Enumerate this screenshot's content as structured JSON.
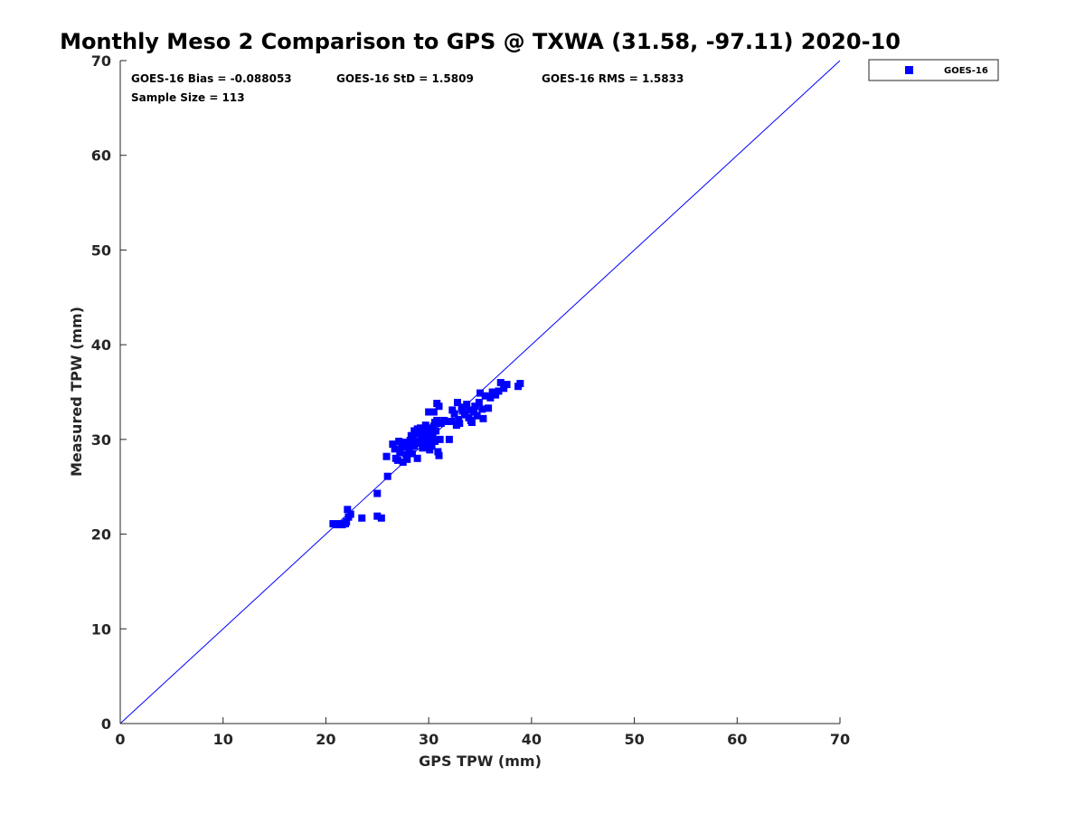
{
  "chart_data": {
    "type": "scatter",
    "title": "Monthly Meso 2 Comparison to GPS @ TXWA (31.58, -97.11) 2020-10",
    "xlabel": "GPS TPW (mm)",
    "ylabel": "Measured TPW (mm)",
    "xlim": [
      0,
      70
    ],
    "ylim": [
      0,
      70
    ],
    "xticks": [
      "0",
      "10",
      "20",
      "30",
      "40",
      "50",
      "60",
      "70"
    ],
    "yticks": [
      "0",
      "10",
      "20",
      "30",
      "40",
      "50",
      "60",
      "70"
    ],
    "grid": false,
    "legend_position": "top-right outside",
    "reference_line": {
      "name": "1:1",
      "color": "#0000ff",
      "from": [
        0,
        0
      ],
      "to": [
        70,
        70
      ]
    },
    "stats": {
      "bias": "GOES-16 Bias = -0.088053",
      "std": "GOES-16 StD = 1.5809",
      "rms": "GOES-16 RMS = 1.5833",
      "sample": "Sample Size = 113"
    },
    "series": [
      {
        "name": "GOES-16",
        "color": "#0000ff",
        "marker": "square",
        "points": [
          [
            20.7,
            21.1
          ],
          [
            21.0,
            21.0
          ],
          [
            21.3,
            21.1
          ],
          [
            21.6,
            21.0
          ],
          [
            21.9,
            21.1
          ],
          [
            22.0,
            21.3
          ],
          [
            22.2,
            21.8
          ],
          [
            22.4,
            22.1
          ],
          [
            22.1,
            22.6
          ],
          [
            23.5,
            21.7
          ],
          [
            25.0,
            21.9
          ],
          [
            25.4,
            21.7
          ],
          [
            25.0,
            24.3
          ],
          [
            26.0,
            26.1
          ],
          [
            25.9,
            28.2
          ],
          [
            26.5,
            29.5
          ],
          [
            26.7,
            29.0
          ],
          [
            26.8,
            28.0
          ],
          [
            27.0,
            27.8
          ],
          [
            27.2,
            28.6
          ],
          [
            27.4,
            29.2
          ],
          [
            27.5,
            27.6
          ],
          [
            27.6,
            29.7
          ],
          [
            27.8,
            28.4
          ],
          [
            27.9,
            27.9
          ],
          [
            28.0,
            29.5
          ],
          [
            28.1,
            28.9
          ],
          [
            28.2,
            29.9
          ],
          [
            28.3,
            30.4
          ],
          [
            28.4,
            28.5
          ],
          [
            28.5,
            30.1
          ],
          [
            28.6,
            29.3
          ],
          [
            28.7,
            30.8
          ],
          [
            28.8,
            29.6
          ],
          [
            28.9,
            28.0
          ],
          [
            29.0,
            30.6
          ],
          [
            29.1,
            29.8
          ],
          [
            29.2,
            31.2
          ],
          [
            29.3,
            30.3
          ],
          [
            29.4,
            29.1
          ],
          [
            29.5,
            30.9
          ],
          [
            29.6,
            29.4
          ],
          [
            29.7,
            31.5
          ],
          [
            29.8,
            30.0
          ],
          [
            29.9,
            30.7
          ],
          [
            30.0,
            29.6
          ],
          [
            30.1,
            31.0
          ],
          [
            30.2,
            30.2
          ],
          [
            30.3,
            29.3
          ],
          [
            30.4,
            30.5
          ],
          [
            30.5,
            31.4
          ],
          [
            30.6,
            29.8
          ],
          [
            30.7,
            30.9
          ],
          [
            30.8,
            32.0
          ],
          [
            30.9,
            28.7
          ],
          [
            30.0,
            32.9
          ],
          [
            30.5,
            32.9
          ],
          [
            30.8,
            33.8
          ],
          [
            31.0,
            33.5
          ],
          [
            31.0,
            28.3
          ],
          [
            31.1,
            30.0
          ],
          [
            31.2,
            31.7
          ],
          [
            31.5,
            32.0
          ],
          [
            32.0,
            30.0
          ],
          [
            32.2,
            31.9
          ],
          [
            32.3,
            33.1
          ],
          [
            32.5,
            32.7
          ],
          [
            32.7,
            31.5
          ],
          [
            32.8,
            33.9
          ],
          [
            32.9,
            32.1
          ],
          [
            33.0,
            31.7
          ],
          [
            33.2,
            33.4
          ],
          [
            33.5,
            32.6
          ],
          [
            33.7,
            33.7
          ],
          [
            33.9,
            32.3
          ],
          [
            34.0,
            33.1
          ],
          [
            34.2,
            31.8
          ],
          [
            34.4,
            32.9
          ],
          [
            34.5,
            33.5
          ],
          [
            34.7,
            32.5
          ],
          [
            34.9,
            33.9
          ],
          [
            35.0,
            34.9
          ],
          [
            35.2,
            33.2
          ],
          [
            35.3,
            32.2
          ],
          [
            35.5,
            34.6
          ],
          [
            35.8,
            33.3
          ],
          [
            36.0,
            34.4
          ],
          [
            36.2,
            35.0
          ],
          [
            36.5,
            34.7
          ],
          [
            36.8,
            35.1
          ],
          [
            37.0,
            36.0
          ],
          [
            37.3,
            35.4
          ],
          [
            37.6,
            35.8
          ],
          [
            38.7,
            35.6
          ],
          [
            38.9,
            35.9
          ],
          [
            29.4,
            31.0
          ],
          [
            29.9,
            31.2
          ],
          [
            30.1,
            28.9
          ],
          [
            29.6,
            30.5
          ],
          [
            30.3,
            31.1
          ],
          [
            28.6,
            30.9
          ],
          [
            29.2,
            29.6
          ],
          [
            27.1,
            29.8
          ],
          [
            28.5,
            29.9
          ],
          [
            30.6,
            31.8
          ],
          [
            31.8,
            31.9
          ],
          [
            33.3,
            33.0
          ],
          [
            34.1,
            32.0
          ],
          [
            29.8,
            29.2
          ],
          [
            30.4,
            29.9
          ],
          [
            28.9,
            31.1
          ],
          [
            29.5,
            30.2
          ],
          [
            30.2,
            30.8
          ]
        ]
      }
    ]
  }
}
